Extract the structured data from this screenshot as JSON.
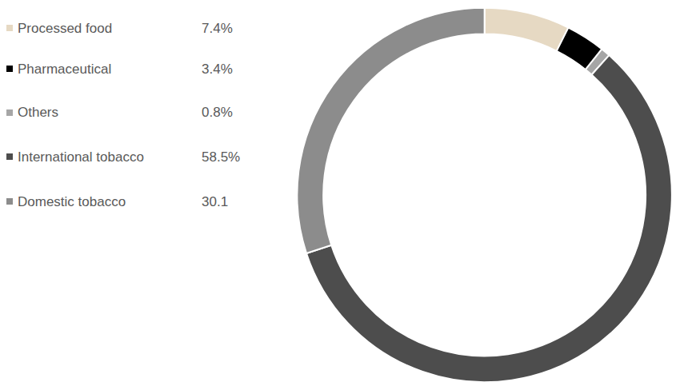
{
  "chart_data": {
    "type": "pie",
    "categories": [
      "Processed food",
      "Pharmaceutical",
      "Others",
      "International tobacco",
      "Domestic tobacco"
    ],
    "values": [
      7.4,
      3.4,
      0.8,
      58.5,
      30.1
    ],
    "value_labels": [
      "7.4%",
      "3.4%",
      "0.8%",
      "58.5%",
      "30.1"
    ],
    "colors": [
      "#e6d9c3",
      "#000000",
      "#a6a6a6",
      "#4d4d4d",
      "#8c8c8c"
    ],
    "legend": "left"
  }
}
